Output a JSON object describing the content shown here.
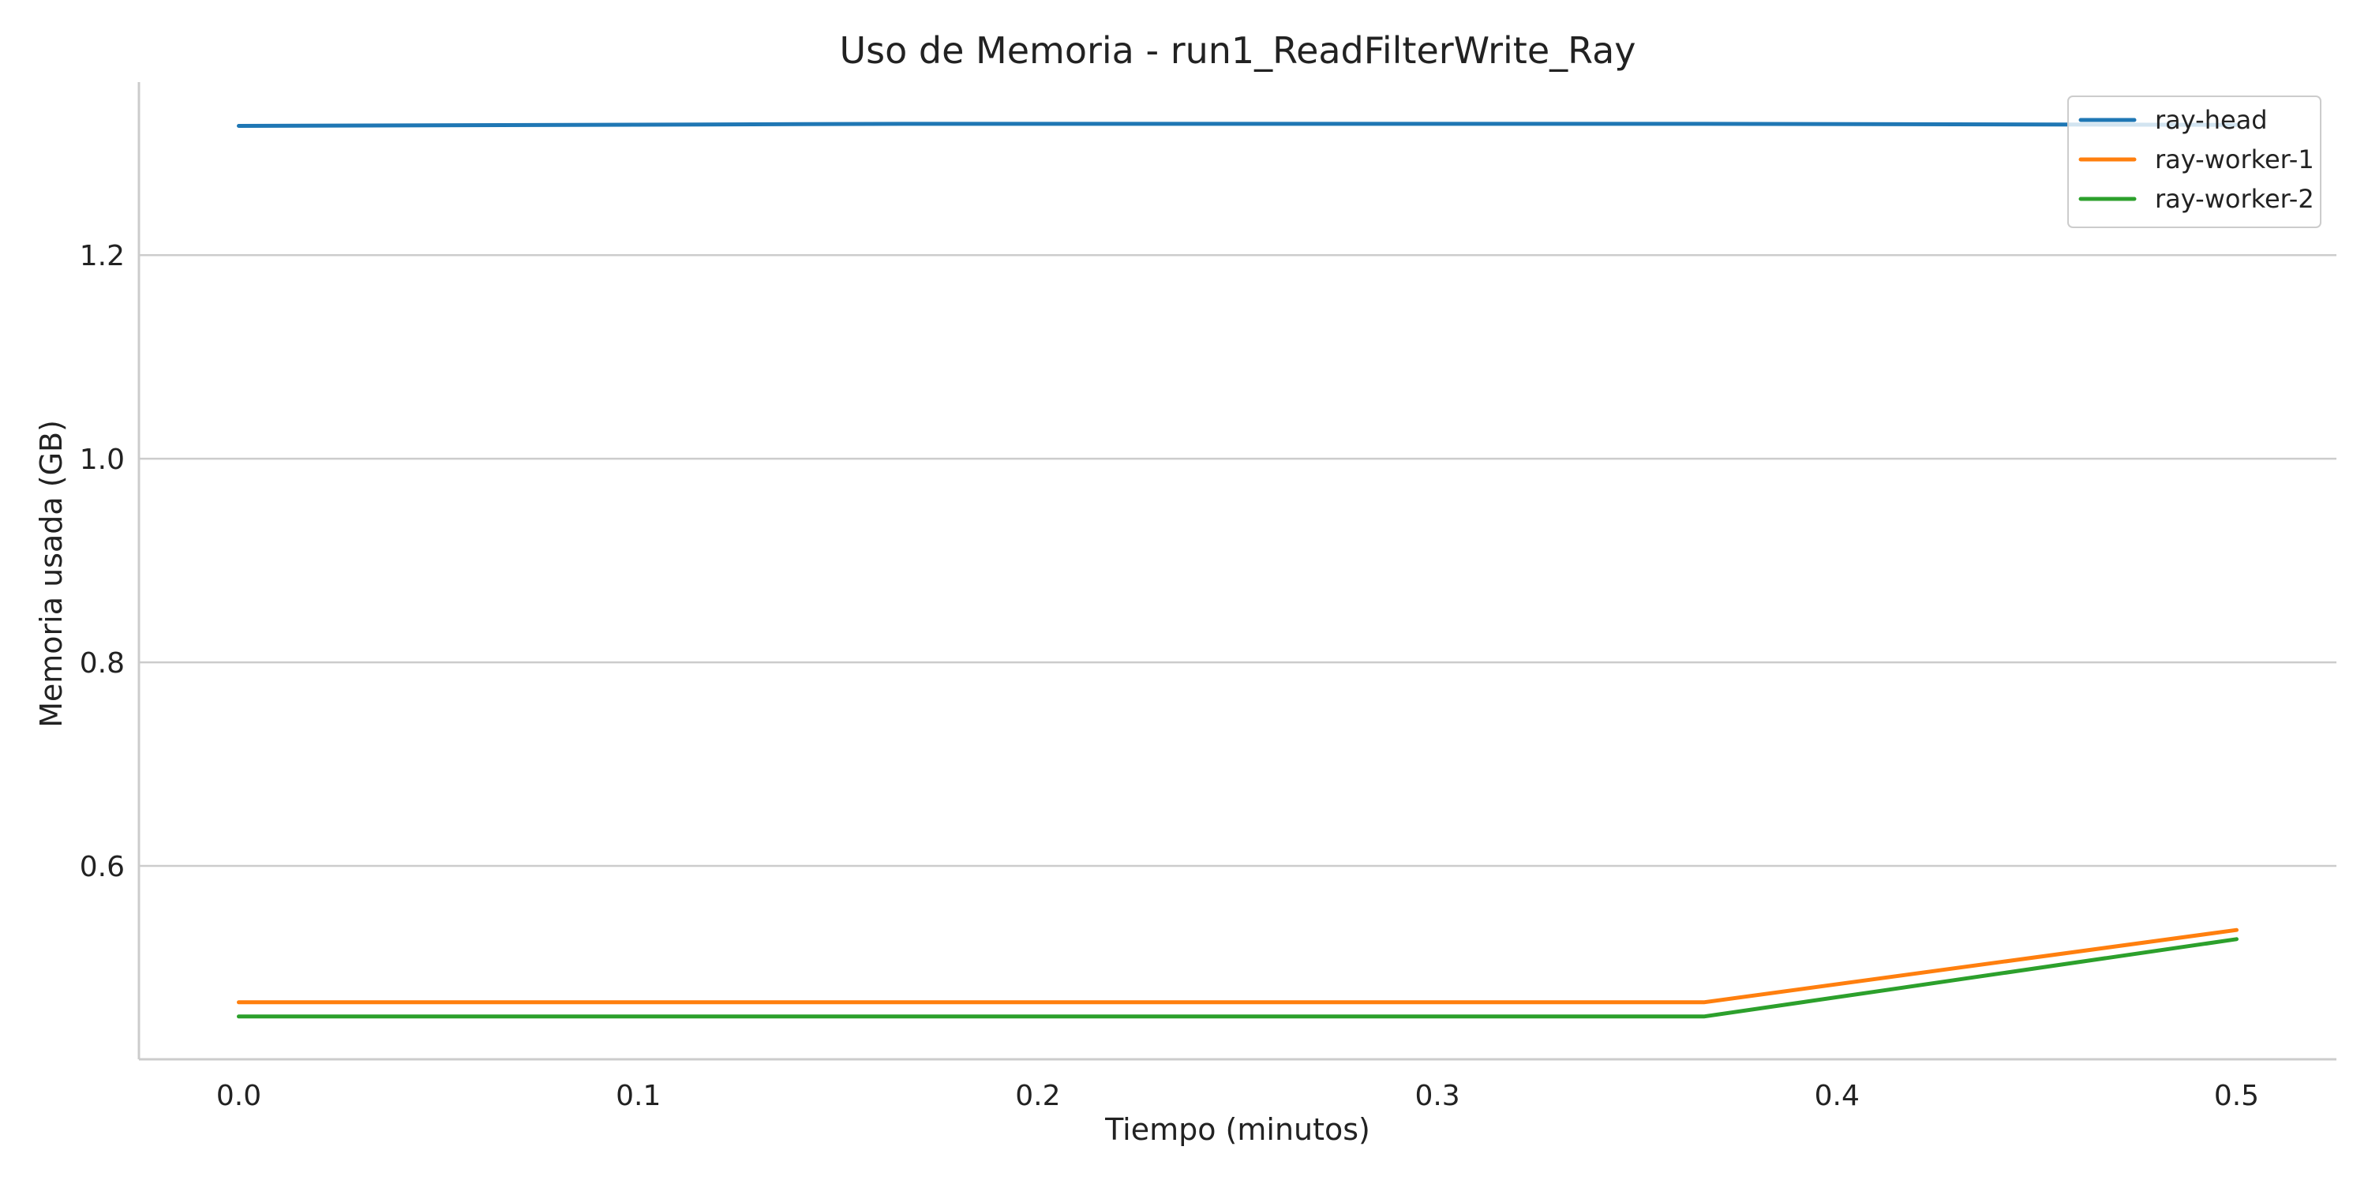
{
  "chart_data": {
    "type": "line",
    "title": "Uso de Memoria - run1_ReadFilterWrite_Ray",
    "xlabel": "Tiempo (minutos)",
    "ylabel": "Memoria usada (GB)",
    "xlim": [
      -0.025,
      0.525
    ],
    "ylim": [
      0.41,
      1.37
    ],
    "xticks": [
      0.0,
      0.1,
      0.2,
      0.3,
      0.4,
      0.5
    ],
    "xtick_labels": [
      "0.0",
      "0.1",
      "0.2",
      "0.3",
      "0.4",
      "0.5"
    ],
    "yticks": [
      0.6,
      0.8,
      1.0,
      1.2
    ],
    "ytick_labels": [
      "0.6",
      "0.8",
      "1.0",
      "1.2"
    ],
    "grid": "y",
    "legend_position": "top-right",
    "series": [
      {
        "name": "ray-head",
        "color": "#1f77b4",
        "x": [
          0.0,
          0.1667,
          0.3667,
          0.5
        ],
        "y": [
          1.327,
          1.329,
          1.329,
          1.328
        ]
      },
      {
        "name": "ray-worker-1",
        "color": "#ff7f0e",
        "x": [
          0.0,
          0.1667,
          0.3667,
          0.5
        ],
        "y": [
          0.466,
          0.466,
          0.466,
          0.537
        ]
      },
      {
        "name": "ray-worker-2",
        "color": "#2ca02c",
        "x": [
          0.0,
          0.1667,
          0.3667,
          0.5
        ],
        "y": [
          0.452,
          0.452,
          0.452,
          0.528
        ]
      }
    ]
  }
}
